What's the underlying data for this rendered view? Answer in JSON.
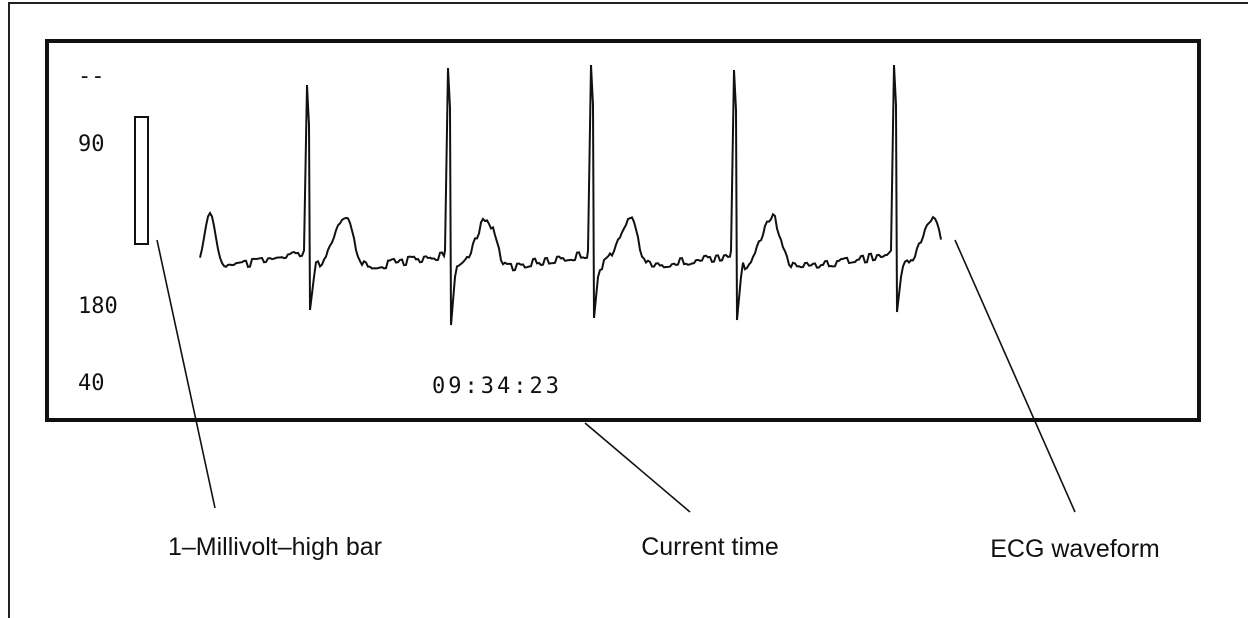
{
  "screen": {
    "labels": [
      "--",
      "90",
      "180",
      "40"
    ],
    "time": "09:34:23"
  },
  "callouts": {
    "bar": "1–Millivolt–high bar",
    "time": "Current time",
    "waveform": "ECG waveform"
  }
}
